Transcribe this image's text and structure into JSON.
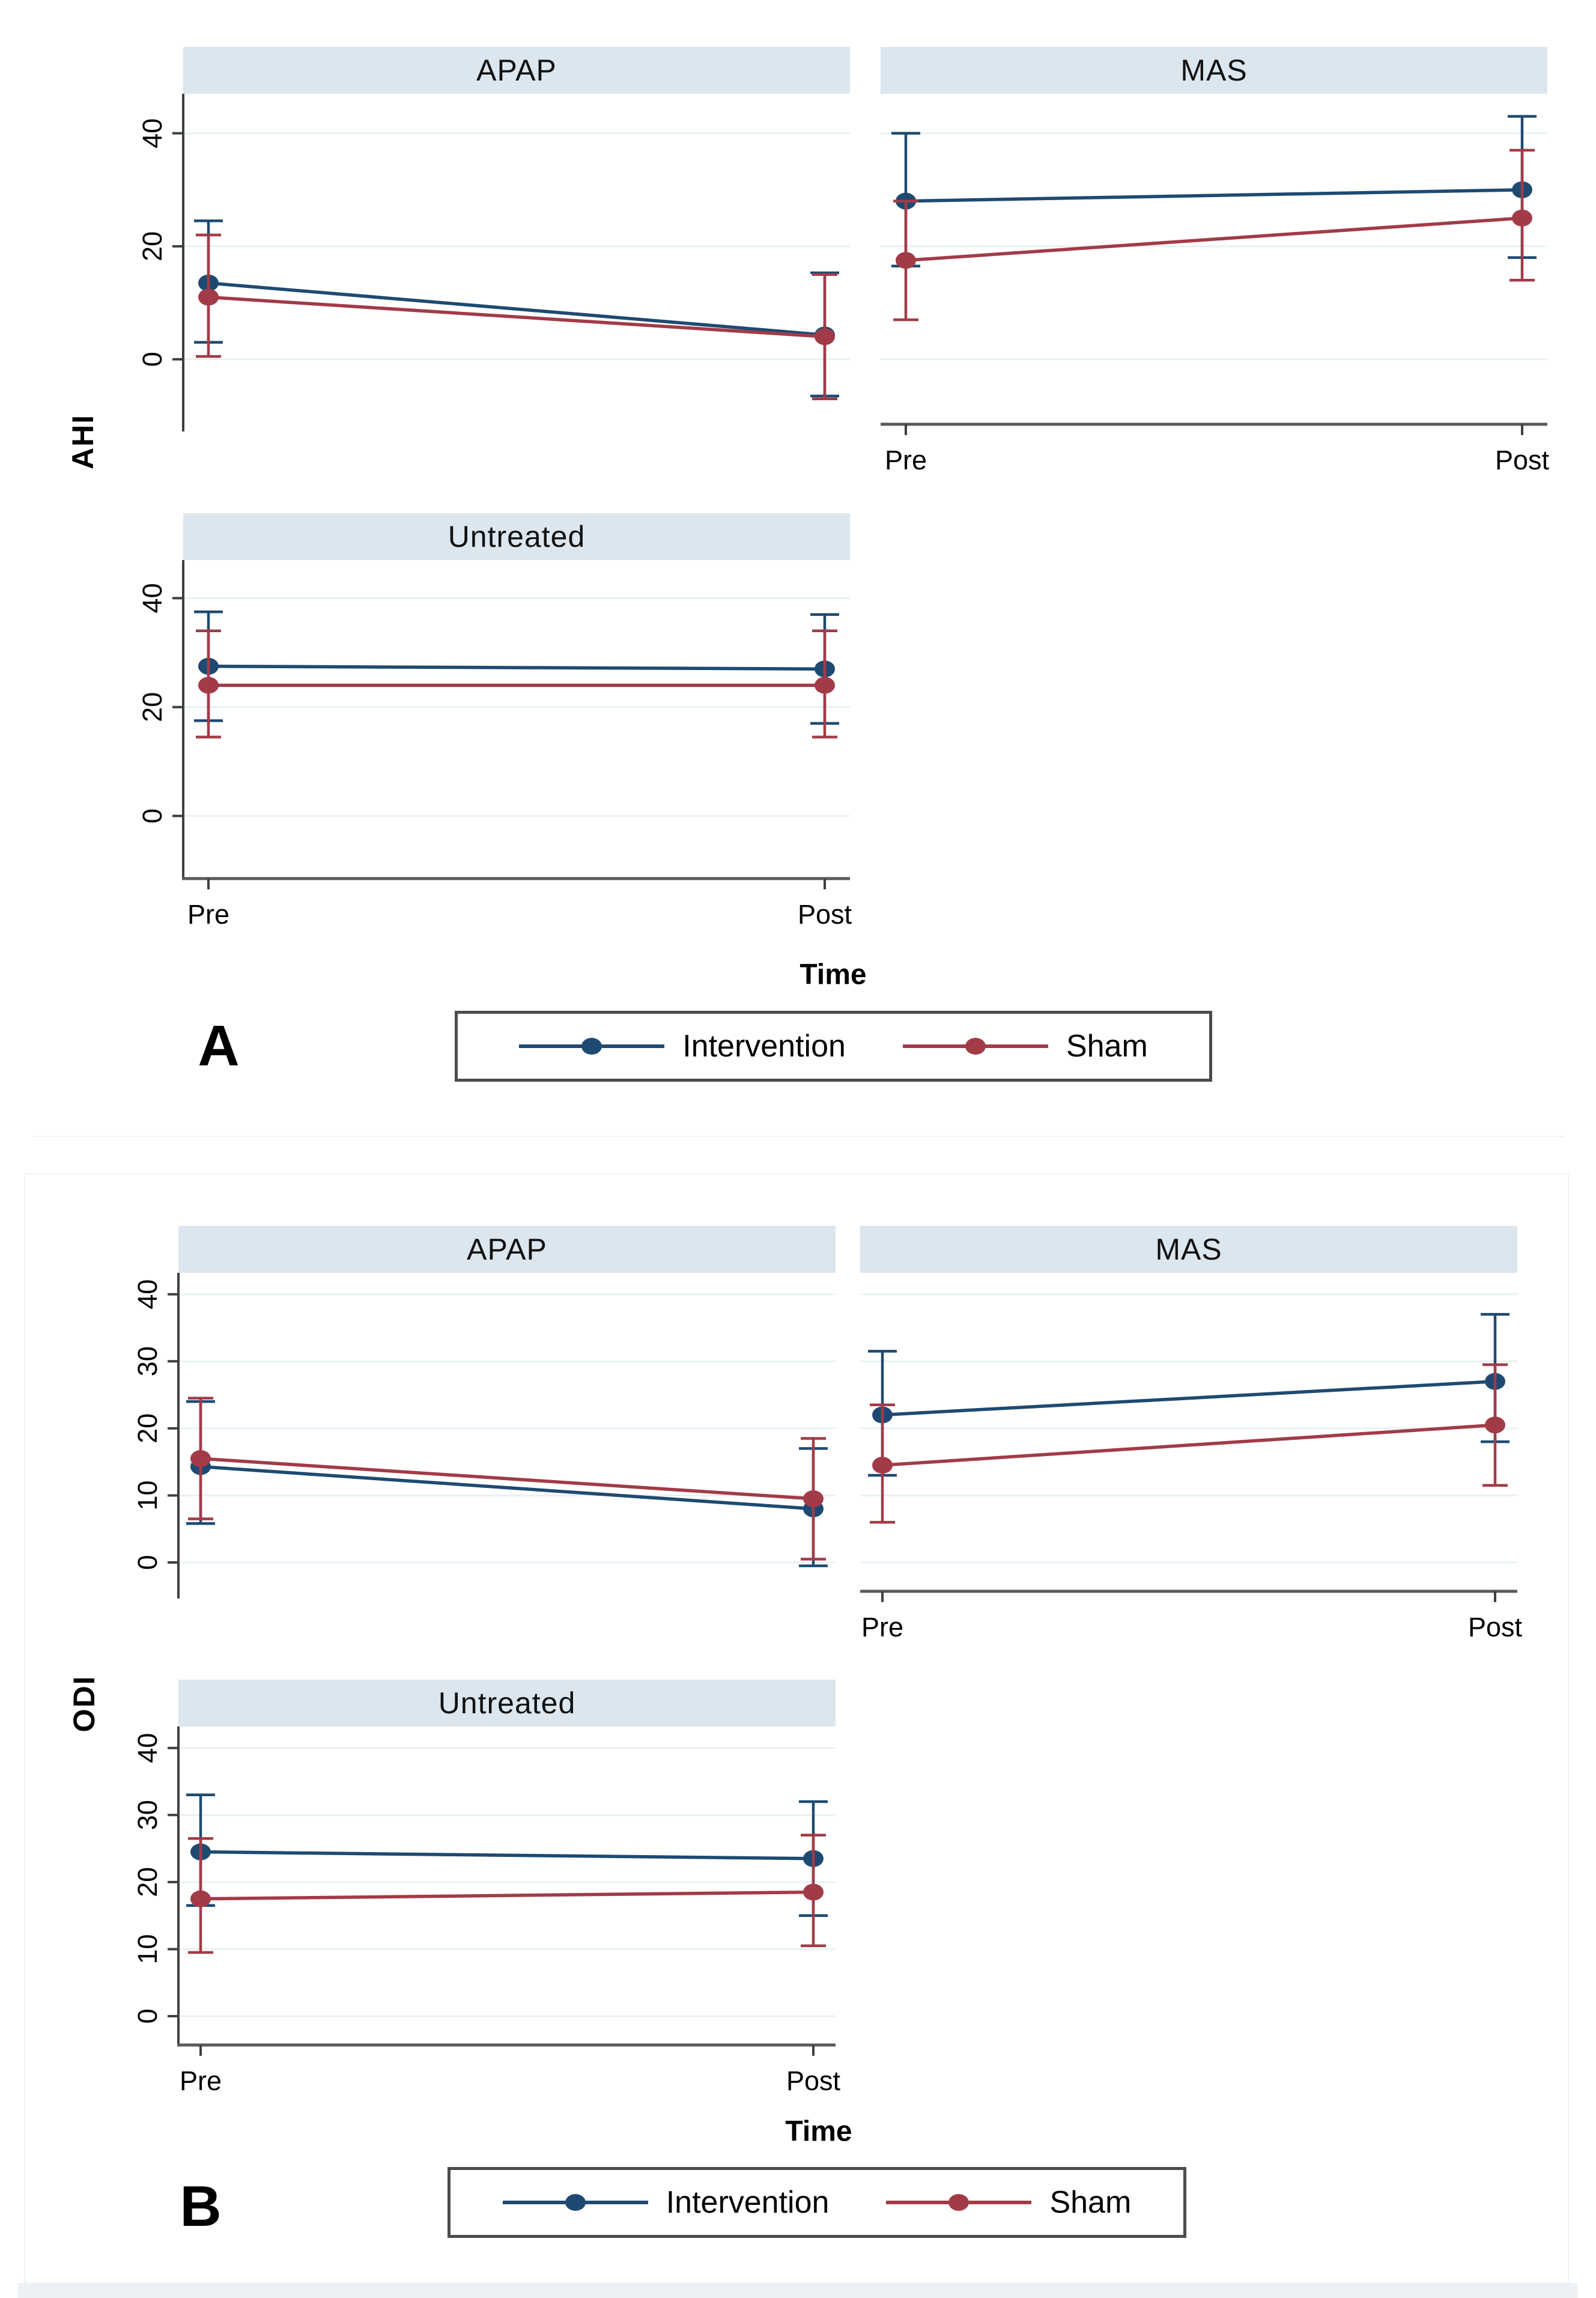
{
  "colors": {
    "intervention": "#1e4a72",
    "sham": "#a23b47",
    "header_band": "#dce6ee",
    "gridline": "#e8f1f1",
    "y_axis": "#3f3f3f",
    "x_axis": "#5a5a5a",
    "legend_border": "#4c4c4c"
  },
  "chart_data": [
    {
      "panel_label": "A",
      "type": "line",
      "title": "",
      "ylabel": "AHI",
      "xlabel": "Time",
      "x_categories": [
        "Pre",
        "Post"
      ],
      "yticks": [
        0,
        20,
        40
      ],
      "ylim": [
        -11.5,
        47
      ],
      "grid": true,
      "legend_position": "bottom",
      "legend": [
        {
          "name": "Intervention",
          "color": "#1e4a72"
        },
        {
          "name": "Sham",
          "color": "#a23b47"
        }
      ],
      "subplots": [
        {
          "title": "APAP",
          "col": 0,
          "row": 0,
          "y_axis": true,
          "x_axis": false,
          "series": [
            {
              "name": "Intervention",
              "values": [
                13.5,
                4.3
              ],
              "ci_low": [
                3,
                -6.5
              ],
              "ci_high": [
                24.5,
                15.3
              ]
            },
            {
              "name": "Sham",
              "values": [
                11,
                4
              ],
              "ci_low": [
                0.5,
                -7
              ],
              "ci_high": [
                22,
                15
              ]
            }
          ]
        },
        {
          "title": "MAS",
          "col": 1,
          "row": 0,
          "y_axis": false,
          "x_axis": true,
          "series": [
            {
              "name": "Intervention",
              "values": [
                28,
                30
              ],
              "ci_low": [
                16.5,
                18
              ],
              "ci_high": [
                40,
                43
              ]
            },
            {
              "name": "Sham",
              "values": [
                17.5,
                25
              ],
              "ci_low": [
                7,
                14
              ],
              "ci_high": [
                28,
                37
              ]
            }
          ]
        },
        {
          "title": "Untreated",
          "col": 0,
          "row": 1,
          "y_axis": true,
          "x_axis": true,
          "series": [
            {
              "name": "Intervention",
              "values": [
                27.5,
                27
              ],
              "ci_low": [
                17.5,
                17
              ],
              "ci_high": [
                37.5,
                37
              ]
            },
            {
              "name": "Sham",
              "values": [
                24,
                24
              ],
              "ci_low": [
                14.5,
                14.5
              ],
              "ci_high": [
                34,
                34
              ]
            }
          ]
        }
      ]
    },
    {
      "panel_label": "B",
      "type": "line",
      "title": "",
      "ylabel": "ODI",
      "xlabel": "Time",
      "x_categories": [
        "Pre",
        "Post"
      ],
      "yticks": [
        0,
        10,
        20,
        30,
        40
      ],
      "ylim": [
        -4.3,
        43.2
      ],
      "grid": true,
      "legend_position": "bottom",
      "legend": [
        {
          "name": "Intervention",
          "color": "#1e4a72"
        },
        {
          "name": "Sham",
          "color": "#a23b47"
        }
      ],
      "subplots": [
        {
          "title": "APAP",
          "col": 0,
          "row": 0,
          "y_axis": true,
          "x_axis": false,
          "series": [
            {
              "name": "Intervention",
              "values": [
                14.3,
                8
              ],
              "ci_low": [
                5.8,
                -0.5
              ],
              "ci_high": [
                24,
                17
              ]
            },
            {
              "name": "Sham",
              "values": [
                15.5,
                9.5
              ],
              "ci_low": [
                6.5,
                0.5
              ],
              "ci_high": [
                24.5,
                18.5
              ]
            }
          ]
        },
        {
          "title": "MAS",
          "col": 1,
          "row": 0,
          "y_axis": false,
          "x_axis": true,
          "series": [
            {
              "name": "Intervention",
              "values": [
                22,
                27
              ],
              "ci_low": [
                13,
                18
              ],
              "ci_high": [
                31.5,
                37
              ]
            },
            {
              "name": "Sham",
              "values": [
                14.5,
                20.5
              ],
              "ci_low": [
                6,
                11.5
              ],
              "ci_high": [
                23.5,
                29.5
              ]
            }
          ]
        },
        {
          "title": "Untreated",
          "col": 0,
          "row": 1,
          "y_axis": true,
          "x_axis": true,
          "series": [
            {
              "name": "Intervention",
              "values": [
                24.5,
                23.5
              ],
              "ci_low": [
                16.5,
                15
              ],
              "ci_high": [
                33,
                32
              ]
            },
            {
              "name": "Sham",
              "values": [
                17.5,
                18.5
              ],
              "ci_low": [
                9.5,
                10.5
              ],
              "ci_high": [
                26.5,
                27
              ]
            }
          ]
        }
      ]
    }
  ]
}
